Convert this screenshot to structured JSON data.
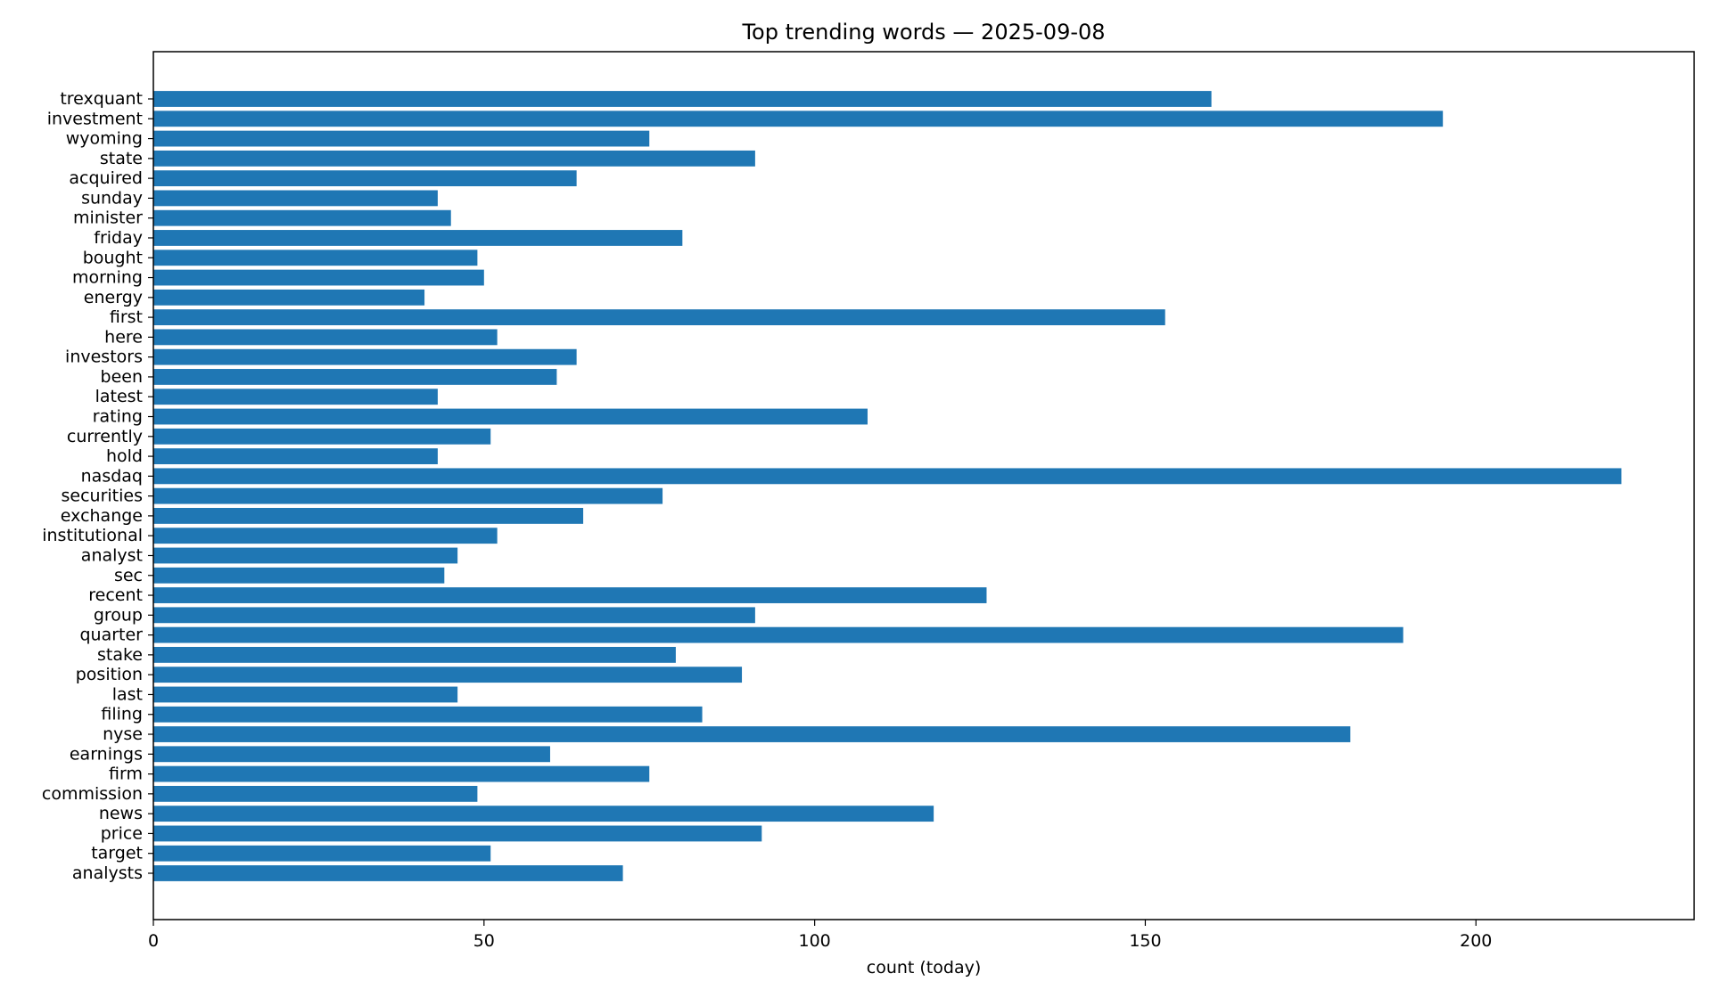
{
  "chart_data": {
    "type": "bar",
    "orientation": "horizontal",
    "title": "Top trending words — 2025-09-08",
    "xlabel": "count (today)",
    "ylabel": "",
    "xlim": [
      0,
      233
    ],
    "xticks": [
      "0",
      "50",
      "100",
      "150",
      "200"
    ],
    "bar_color": "#1f77b4",
    "grid": false,
    "categories": [
      "trexquant",
      "investment",
      "wyoming",
      "state",
      "acquired",
      "sunday",
      "minister",
      "friday",
      "bought",
      "morning",
      "energy",
      "first",
      "here",
      "investors",
      "been",
      "latest",
      "rating",
      "currently",
      "hold",
      "nasdaq",
      "securities",
      "exchange",
      "institutional",
      "analyst",
      "sec",
      "recent",
      "group",
      "quarter",
      "stake",
      "position",
      "last",
      "filing",
      "nyse",
      "earnings",
      "firm",
      "commission",
      "news",
      "price",
      "target",
      "analysts"
    ],
    "values": [
      160,
      195,
      75,
      91,
      64,
      43,
      45,
      80,
      49,
      50,
      41,
      153,
      52,
      64,
      61,
      43,
      108,
      51,
      43,
      222,
      77,
      65,
      52,
      46,
      44,
      126,
      91,
      189,
      79,
      89,
      46,
      83,
      181,
      60,
      75,
      49,
      118,
      92,
      51,
      71
    ]
  }
}
